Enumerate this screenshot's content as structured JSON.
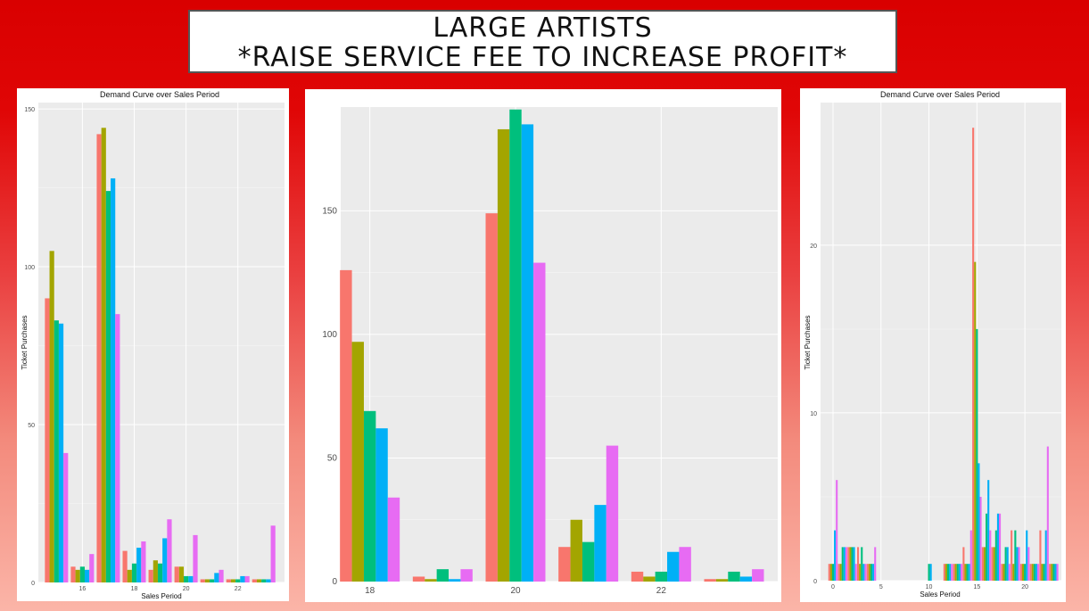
{
  "slide": {
    "title_line1": "LARGE ARTISTS",
    "title_line2": "*RAISE SERVICE FEE TO INCREASE PROFIT*"
  },
  "colors": {
    "series": [
      "#f8766d",
      "#a3a500",
      "#00bf7d",
      "#00b0f6",
      "#e76bf3"
    ],
    "panel_bg": "#ebebeb",
    "grid_major": "#ffffff"
  },
  "chart_data": [
    {
      "type": "bar",
      "title": "Demand Curve over Sales Period",
      "xlabel": "Sales Period",
      "ylabel": "Ticket Purchases",
      "xlim": [
        14.3,
        23.8
      ],
      "ylim": [
        0,
        152
      ],
      "x_ticks": [
        16,
        18,
        20,
        22
      ],
      "y_ticks": [
        0,
        50,
        100,
        150
      ],
      "x": [
        15,
        16,
        17,
        18,
        19,
        20,
        21,
        22,
        23
      ],
      "series": [
        {
          "values": [
            90,
            5,
            142,
            10,
            4,
            5,
            1,
            1,
            1
          ]
        },
        {
          "values": [
            105,
            4,
            144,
            4,
            7,
            5,
            1,
            1,
            1
          ]
        },
        {
          "values": [
            83,
            5,
            124,
            6,
            6,
            2,
            1,
            1,
            1
          ]
        },
        {
          "values": [
            82,
            4,
            128,
            11,
            14,
            2,
            3,
            2,
            1
          ]
        },
        {
          "values": [
            41,
            9,
            85,
            13,
            20,
            15,
            4,
            2,
            18
          ]
        }
      ]
    },
    {
      "type": "bar",
      "title": "",
      "xlabel": "",
      "ylabel": "",
      "xlim": [
        17.6,
        23.6
      ],
      "ylim": [
        0,
        192
      ],
      "x_ticks": [
        18,
        20,
        22
      ],
      "y_ticks": [
        0,
        50,
        100,
        150
      ],
      "x": [
        18,
        19,
        20,
        21,
        22,
        23
      ],
      "series": [
        {
          "values": [
            126,
            2,
            149,
            14,
            4,
            1
          ]
        },
        {
          "values": [
            97,
            1,
            183,
            25,
            2,
            1
          ]
        },
        {
          "values": [
            69,
            5,
            191,
            16,
            4,
            4
          ]
        },
        {
          "values": [
            62,
            1,
            185,
            31,
            12,
            2
          ]
        },
        {
          "values": [
            34,
            5,
            129,
            55,
            14,
            5
          ]
        }
      ]
    },
    {
      "type": "bar",
      "title": "Demand Curve over Sales Period",
      "xlabel": "Sales Period",
      "ylabel": "Ticket Purchases",
      "xlim": [
        -1.3,
        23.8
      ],
      "ylim": [
        0,
        28.5
      ],
      "x_ticks": [
        0,
        5,
        10,
        15,
        20
      ],
      "y_ticks": [
        0,
        10,
        20
      ],
      "x": [
        0,
        1,
        2,
        3,
        4,
        10,
        12,
        13,
        14,
        15,
        16,
        17,
        18,
        19,
        20,
        21,
        22,
        23
      ],
      "series": [
        {
          "values": [
            1,
            1,
            2,
            2,
            1,
            0,
            1,
            1,
            2,
            27,
            2,
            2,
            1,
            3,
            1,
            1,
            3,
            1
          ]
        },
        {
          "values": [
            1,
            1,
            2,
            1,
            1,
            0,
            1,
            1,
            1,
            19,
            2,
            2,
            1,
            1,
            1,
            1,
            1,
            1
          ]
        },
        {
          "values": [
            1,
            2,
            2,
            2,
            1,
            1,
            1,
            1,
            1,
            15,
            4,
            3,
            2,
            3,
            1,
            1,
            1,
            1
          ]
        },
        {
          "values": [
            3,
            2,
            2,
            1,
            1,
            1,
            1,
            1,
            1,
            7,
            6,
            4,
            2,
            2,
            3,
            1,
            3,
            1
          ]
        },
        {
          "values": [
            6,
            2,
            1,
            1,
            2,
            0,
            1,
            1,
            3,
            5,
            3,
            4,
            1,
            2,
            2,
            1,
            8,
            1
          ]
        }
      ]
    }
  ]
}
